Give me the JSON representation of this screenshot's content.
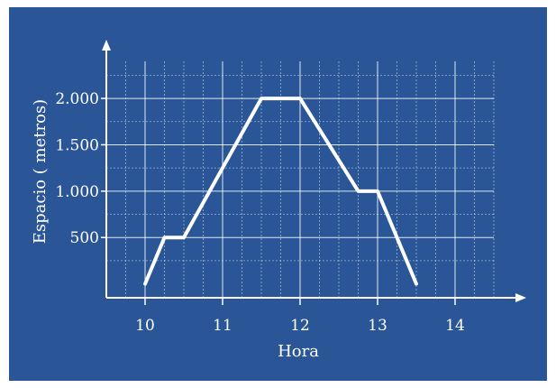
{
  "colors": {
    "background": "#2a5697",
    "foreground": "#ffffff"
  },
  "chart_data": {
    "type": "line",
    "xlabel": "Hora",
    "ylabel": "Espacio  ( metros)",
    "xlim": [
      9.5,
      14.5
    ],
    "ylim": [
      -150,
      2400
    ],
    "x_ticks": [
      10,
      11,
      12,
      13,
      14
    ],
    "x_tick_labels": [
      "10",
      "11",
      "12",
      "13",
      "14"
    ],
    "y_ticks": [
      500,
      1000,
      1500,
      2000
    ],
    "y_tick_labels": [
      "500",
      "1.000",
      "1.500",
      "2.000"
    ],
    "grid": true,
    "series": [
      {
        "x": [
          10,
          10.25,
          10.5,
          11.5,
          12,
          12.75,
          13,
          13.5
        ],
        "y": [
          0,
          500,
          500,
          2000,
          2000,
          1000,
          1000,
          0
        ]
      }
    ]
  }
}
